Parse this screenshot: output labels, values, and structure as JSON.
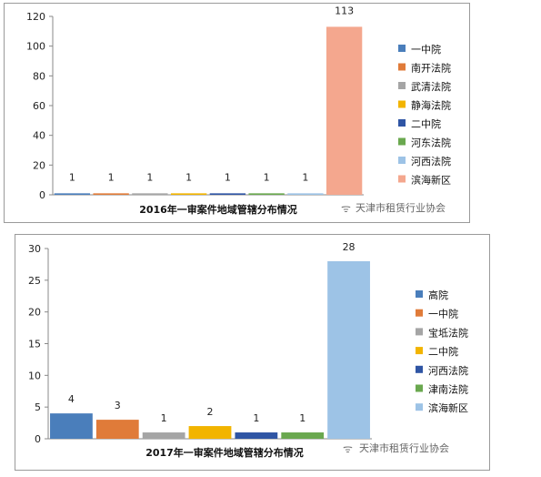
{
  "chart_data": [
    {
      "type": "bar",
      "title": "2016年一审案件地域管辖分布情况",
      "categories": [
        "一中院",
        "南开法院",
        "武清法院",
        "静海法院",
        "二中院",
        "河东法院",
        "河西法院",
        "滨海新区"
      ],
      "values": [
        1,
        1,
        1,
        1,
        1,
        1,
        1,
        113
      ],
      "data_labels": [
        "1",
        "1",
        "1",
        "1",
        "1",
        "1",
        "1",
        "113"
      ],
      "colors": [
        "#4a7ebb",
        "#e07b39",
        "#a5a5a5",
        "#f2b400",
        "#2f55a4",
        "#6aa84f",
        "#9dc3e6",
        "#f4a78e"
      ],
      "ylim": [
        0,
        120
      ],
      "yticks": [
        "0",
        "20",
        "40",
        "60",
        "80",
        "100",
        "120"
      ],
      "grid": false,
      "legend": "right",
      "watermark": "天津市租赁行业协会"
    },
    {
      "type": "bar",
      "title": "2017年一审案件地域管辖分布情况",
      "categories": [
        "高院",
        "一中院",
        "宝坻法院",
        "二中院",
        "河西法院",
        "津南法院",
        "滨海新区"
      ],
      "values": [
        4,
        3,
        1,
        2,
        1,
        1,
        28
      ],
      "data_labels": [
        "4",
        "3",
        "1",
        "2",
        "1",
        "1",
        "28"
      ],
      "colors": [
        "#4a7ebb",
        "#e07b39",
        "#a5a5a5",
        "#f2b400",
        "#2f55a4",
        "#6aa84f",
        "#9dc3e6"
      ],
      "ylim": [
        0,
        30
      ],
      "yticks": [
        "0",
        "5",
        "10",
        "15",
        "20",
        "25",
        "30"
      ],
      "grid": false,
      "legend": "right",
      "watermark": "天津市租赁行业协会"
    }
  ]
}
